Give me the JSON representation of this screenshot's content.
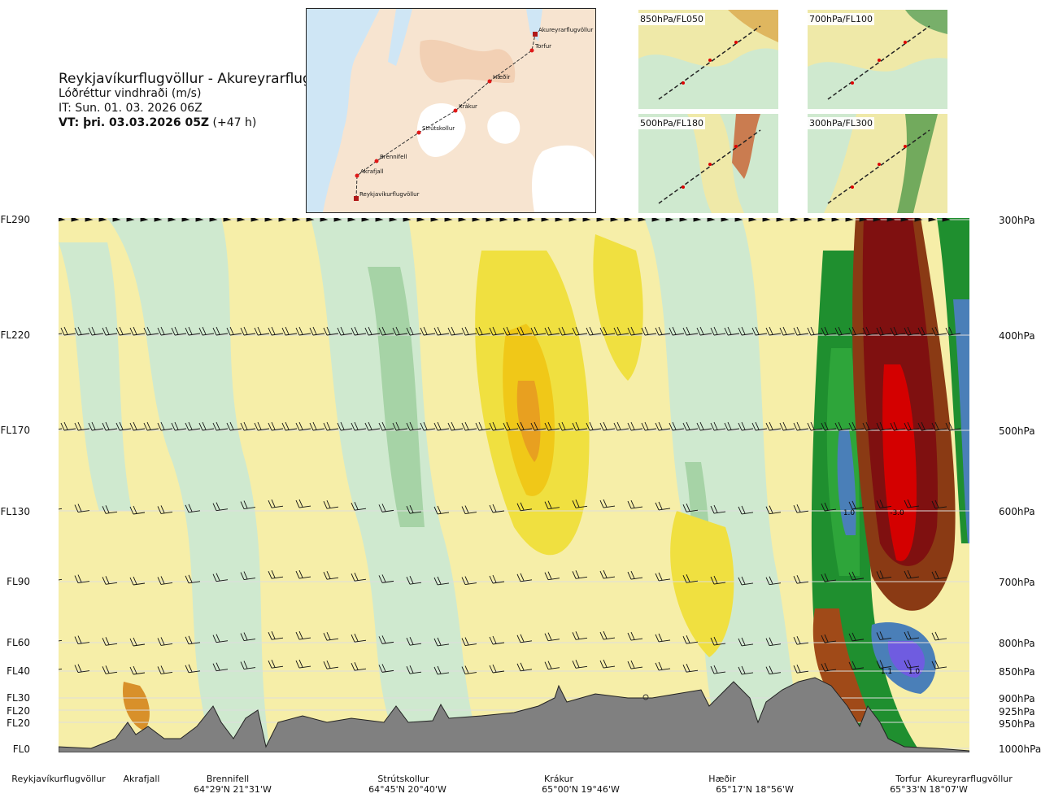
{
  "header": {
    "route": "Reykjavíkurflugvöllur - Akureyrarflugvöllur",
    "parameter": "Lóðréttur vindhraði (m/s)",
    "initial_time": "IT: Sun. 01. 03. 2026 06Z",
    "valid_time_bold": "VT: þri. 03.03.2026 05Z",
    "valid_time_lead": "(+47 h)"
  },
  "overview_map": {
    "waypoints": [
      "Akureyrarflugvöllur",
      "Torfur",
      "Hæðir",
      "Krákur",
      "Strútskollur",
      "Brennifell",
      "Akrafjall",
      "Reykjavíkurflugvöllur"
    ]
  },
  "thumbnails": [
    {
      "label": "850hPa/FL050"
    },
    {
      "label": "700hPa/FL100"
    },
    {
      "label": "500hPa/FL180"
    },
    {
      "label": "300hPa/FL300"
    }
  ],
  "left_axis": [
    "FL290",
    "FL220",
    "FL170",
    "FL130",
    "FL90",
    "FL60",
    "FL40",
    "FL30",
    "FL20",
    "FL20",
    "FL0"
  ],
  "right_axis": [
    "300hPa",
    "400hPa",
    "500hPa",
    "600hPa",
    "700hPa",
    "800hPa",
    "850hPa",
    "900hPa",
    "925hPa",
    "950hPa",
    "1000hPa"
  ],
  "bottom_axis": {
    "places": [
      "Reykjavíkurflugvöllur",
      "Akrafjall",
      "Brennifell",
      "Strútskollur",
      "Krákur",
      "Hæðir",
      "Torfur",
      "Akureyrarflugvöllur"
    ],
    "coords": [
      "64°29'N 21°31'W",
      "64°45'N 20°40'W",
      "65°00'N 19°46'W",
      "65°17'N 18°56'W",
      "65°33'N 18°07'W"
    ]
  },
  "contour_labels": [
    "1.0",
    "-3.0",
    "1.1",
    "1.0"
  ],
  "colors": {
    "strong_down": "#7f1010",
    "down_red": "#d40000",
    "down_orange": "#e8a020",
    "down_yellow": "#f0e040",
    "weak_yellow": "#f6eea8",
    "weak_green": "#cfe9cf",
    "green_mid": "#a6d3a6",
    "green_strong": "#1f8f2f",
    "up_blue": "#4a7fb8",
    "up_violet": "#6f5ce0",
    "terrain": "#808080"
  },
  "chart_data": {
    "type": "heatmap",
    "title": "Reykjavíkurflugvöllur - Akureyrarflugvöllur",
    "variable": "Lóðréttur vindhraði (m/s)",
    "y_levels_hPa": [
      300,
      400,
      500,
      600,
      700,
      800,
      850,
      900,
      925,
      950,
      1000
    ],
    "y_levels_FL": [
      "FL290",
      "FL220",
      "FL170",
      "FL130",
      "FL90",
      "FL60",
      "FL40",
      "FL30",
      "FL20",
      "FL20",
      "FL0"
    ],
    "x_waypoints": [
      "Reykjavíkurflugvöllur",
      "Akrafjall",
      "Brennifell",
      "Strútskollur",
      "Krákur",
      "Hæðir",
      "Torfur",
      "Akureyrarflugvöllur"
    ],
    "labeled_contours": [
      {
        "value": 1.0,
        "near": "Torfur",
        "level_hPa": 600
      },
      {
        "value": -3.0,
        "near": "Torfur",
        "level_hPa": 600
      },
      {
        "value": 1.1,
        "near": "Torfur",
        "level_hPa": 850
      },
      {
        "value": 1.0,
        "near": "Torfur",
        "level_hPa": 850
      }
    ],
    "terrain": "grey silhouette along route"
  }
}
